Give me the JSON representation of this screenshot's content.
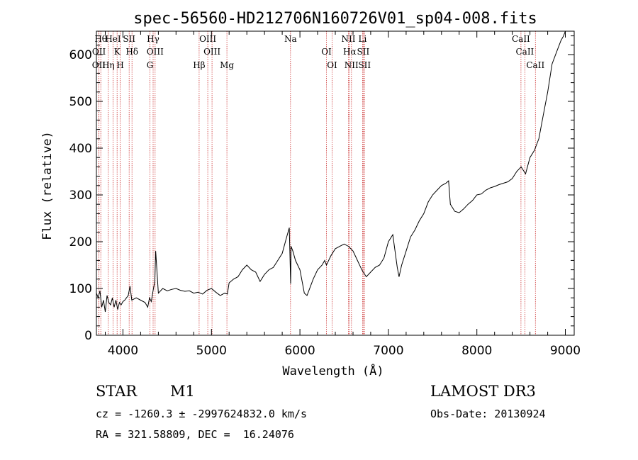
{
  "chart_data": {
    "type": "line",
    "title": "spec-56560-HD212706N160726V01_sp04-008.fits",
    "xlabel": "Wavelength (Å)",
    "ylabel": "Flux (relative)",
    "xlim": [
      3700,
      9100
    ],
    "ylim": [
      0,
      650
    ],
    "x_ticks": [
      4000,
      5000,
      6000,
      7000,
      8000,
      9000
    ],
    "y_ticks": [
      0,
      100,
      200,
      300,
      400,
      500,
      600
    ],
    "grid": false,
    "series": [
      {
        "x": [
          3700,
          3720,
          3740,
          3760,
          3780,
          3800,
          3820,
          3840,
          3860,
          3880,
          3900,
          3920,
          3940,
          3960,
          3980,
          4000,
          4020,
          4040,
          4060,
          4080,
          4100,
          4150,
          4200,
          4250,
          4280,
          4300,
          4320,
          4340,
          4360,
          4370,
          4400,
          4450,
          4500,
          4550,
          4600,
          4650,
          4700,
          4750,
          4800,
          4850,
          4900,
          4950,
          5000,
          5050,
          5100,
          5150,
          5180,
          5200,
          5250,
          5300,
          5350,
          5400,
          5450,
          5500,
          5550,
          5600,
          5650,
          5700,
          5750,
          5800,
          5850,
          5880,
          5895,
          5900,
          5920,
          5950,
          6000,
          6050,
          6080,
          6100,
          6150,
          6200,
          6250,
          6280,
          6300,
          6350,
          6400,
          6450,
          6500,
          6550,
          6600,
          6650,
          6700,
          6750,
          6800,
          6850,
          6900,
          6950,
          7000,
          7050,
          7100,
          7120,
          7150,
          7200,
          7250,
          7300,
          7350,
          7400,
          7450,
          7500,
          7550,
          7600,
          7650,
          7680,
          7700,
          7750,
          7800,
          7850,
          7900,
          7950,
          8000,
          8050,
          8100,
          8150,
          8200,
          8250,
          8300,
          8350,
          8400,
          8450,
          8500,
          8550,
          8600,
          8650,
          8700,
          8750,
          8800,
          8850,
          8900,
          8950,
          8980,
          9000
        ],
        "y": [
          90,
          80,
          95,
          60,
          75,
          50,
          85,
          70,
          65,
          80,
          60,
          75,
          55,
          70,
          65,
          72,
          75,
          80,
          85,
          105,
          75,
          80,
          75,
          70,
          60,
          80,
          72,
          95,
          115,
          180,
          90,
          100,
          95,
          98,
          100,
          96,
          94,
          95,
          90,
          92,
          88,
          96,
          100,
          92,
          85,
          90,
          88,
          112,
          120,
          125,
          140,
          150,
          140,
          135,
          115,
          130,
          140,
          145,
          160,
          175,
          210,
          230,
          110,
          190,
          180,
          160,
          140,
          90,
          85,
          95,
          120,
          140,
          150,
          160,
          150,
          170,
          185,
          190,
          195,
          190,
          180,
          160,
          140,
          125,
          135,
          145,
          150,
          165,
          200,
          215,
          145,
          125,
          150,
          180,
          210,
          225,
          245,
          260,
          285,
          300,
          310,
          320,
          325,
          330,
          280,
          265,
          262,
          270,
          280,
          288,
          300,
          302,
          310,
          315,
          318,
          322,
          325,
          328,
          335,
          350,
          360,
          345,
          380,
          395,
          420,
          470,
          520,
          580,
          605,
          630,
          640,
          650
        ]
      }
    ],
    "line_markers": [
      {
        "label": "OII",
        "x": 3727,
        "row": 2
      },
      {
        "label": "Hθ",
        "x": 3750,
        "row": 1
      },
      {
        "label": "OII",
        "x": 3729,
        "row": 1
      },
      {
        "label": "Hη",
        "x": 3835,
        "row": 2
      },
      {
        "label": "HeI",
        "x": 3888,
        "row": 1
      },
      {
        "label": "K",
        "x": 3934,
        "row": 1
      },
      {
        "label": "H",
        "x": 3969,
        "row": 2
      },
      {
        "label": "SII",
        "x": 4070,
        "row": 1
      },
      {
        "label": "Hδ",
        "x": 4102,
        "row": 1
      },
      {
        "label": "G",
        "x": 4305,
        "row": 2
      },
      {
        "label": "Hγ",
        "x": 4341,
        "row": 1
      },
      {
        "label": "OIII",
        "x": 4363,
        "row": 1
      },
      {
        "label": "Hβ",
        "x": 4861,
        "row": 2
      },
      {
        "label": "OIII",
        "x": 4959,
        "row": 1
      },
      {
        "label": "OIII",
        "x": 5007,
        "row": 1
      },
      {
        "label": "Mg",
        "x": 5175,
        "row": 2
      },
      {
        "label": "Na",
        "x": 5894,
        "row": 1
      },
      {
        "label": "OI",
        "x": 6300,
        "row": 1
      },
      {
        "label": "OI",
        "x": 6364,
        "row": 2
      },
      {
        "label": "NII",
        "x": 6548,
        "row": 1
      },
      {
        "label": "Hα",
        "x": 6563,
        "row": 1
      },
      {
        "label": "NII",
        "x": 6583,
        "row": 2
      },
      {
        "label": "Li",
        "x": 6708,
        "row": 1
      },
      {
        "label": "SII",
        "x": 6716,
        "row": 1
      },
      {
        "label": "SII",
        "x": 6731,
        "row": 2
      },
      {
        "label": "CaII",
        "x": 8498,
        "row": 1
      },
      {
        "label": "CaII",
        "x": 8542,
        "row": 1
      },
      {
        "label": "CaII",
        "x": 8662,
        "row": 2
      }
    ],
    "marker_color": "#cc3333",
    "line_color": "#000000"
  },
  "info": {
    "object_class": "STAR",
    "subclass": "M1",
    "survey": "LAMOST DR3",
    "cz_line": "cz = -1260.3 ± -2997624832.0 km/s",
    "obs_date_line": "Obs-Date: 20130924",
    "radec_line": "RA = 321.58809, DEC =  16.24076"
  }
}
